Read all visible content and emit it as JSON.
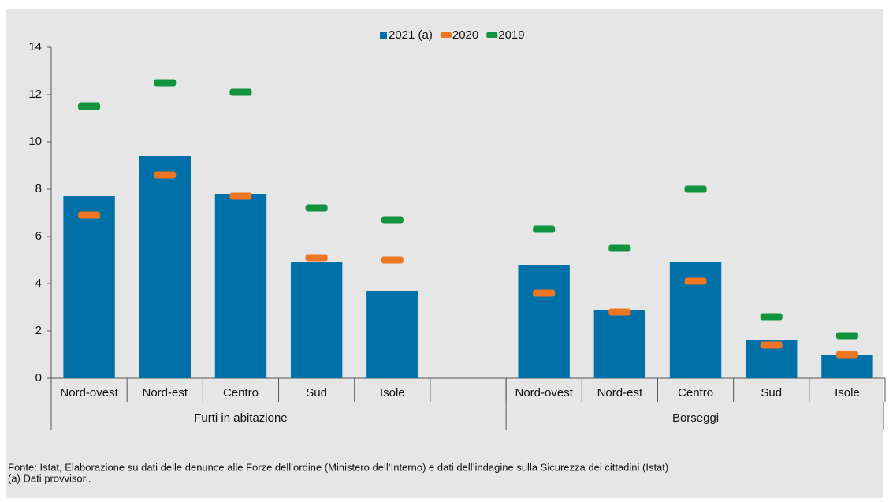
{
  "chart_data": {
    "type": "bar",
    "categories": [
      "Nord-ovest",
      "Nord-est",
      "Centro",
      "Sud",
      "Isole",
      null,
      "Nord-ovest",
      "Nord-est",
      "Centro",
      "Sud",
      "Isole"
    ],
    "groups": [
      "Furti in abitazione",
      "Borseggi"
    ],
    "series": [
      {
        "name": "2021 (a)",
        "color": "#0070a8",
        "style": "bar",
        "values": [
          7.7,
          9.4,
          7.8,
          4.9,
          3.7,
          null,
          4.8,
          2.9,
          4.9,
          1.6,
          1.0
        ]
      },
      {
        "name": "2020",
        "color": "#ee7623",
        "style": "marker",
        "values": [
          6.9,
          8.6,
          7.7,
          5.1,
          5.0,
          null,
          3.6,
          2.8,
          4.1,
          1.4,
          1.0
        ]
      },
      {
        "name": "2019",
        "color": "#12933e",
        "style": "marker",
        "values": [
          11.5,
          12.5,
          12.1,
          7.2,
          6.7,
          null,
          6.3,
          5.5,
          8.0,
          2.6,
          1.8
        ]
      }
    ],
    "ylim": [
      0,
      14
    ],
    "yticks": [
      0,
      2,
      4,
      6,
      8,
      10,
      12,
      14
    ],
    "grid": false,
    "notes": [
      "Fonte: Istat, Elaborazione su dati delle denunce alle Forze dell’ordine (Ministero dell’Interno) e dati dell’indagine sulla Sicurezza dei cittadini (Istat)",
      "(a) Dati provvisori."
    ]
  }
}
